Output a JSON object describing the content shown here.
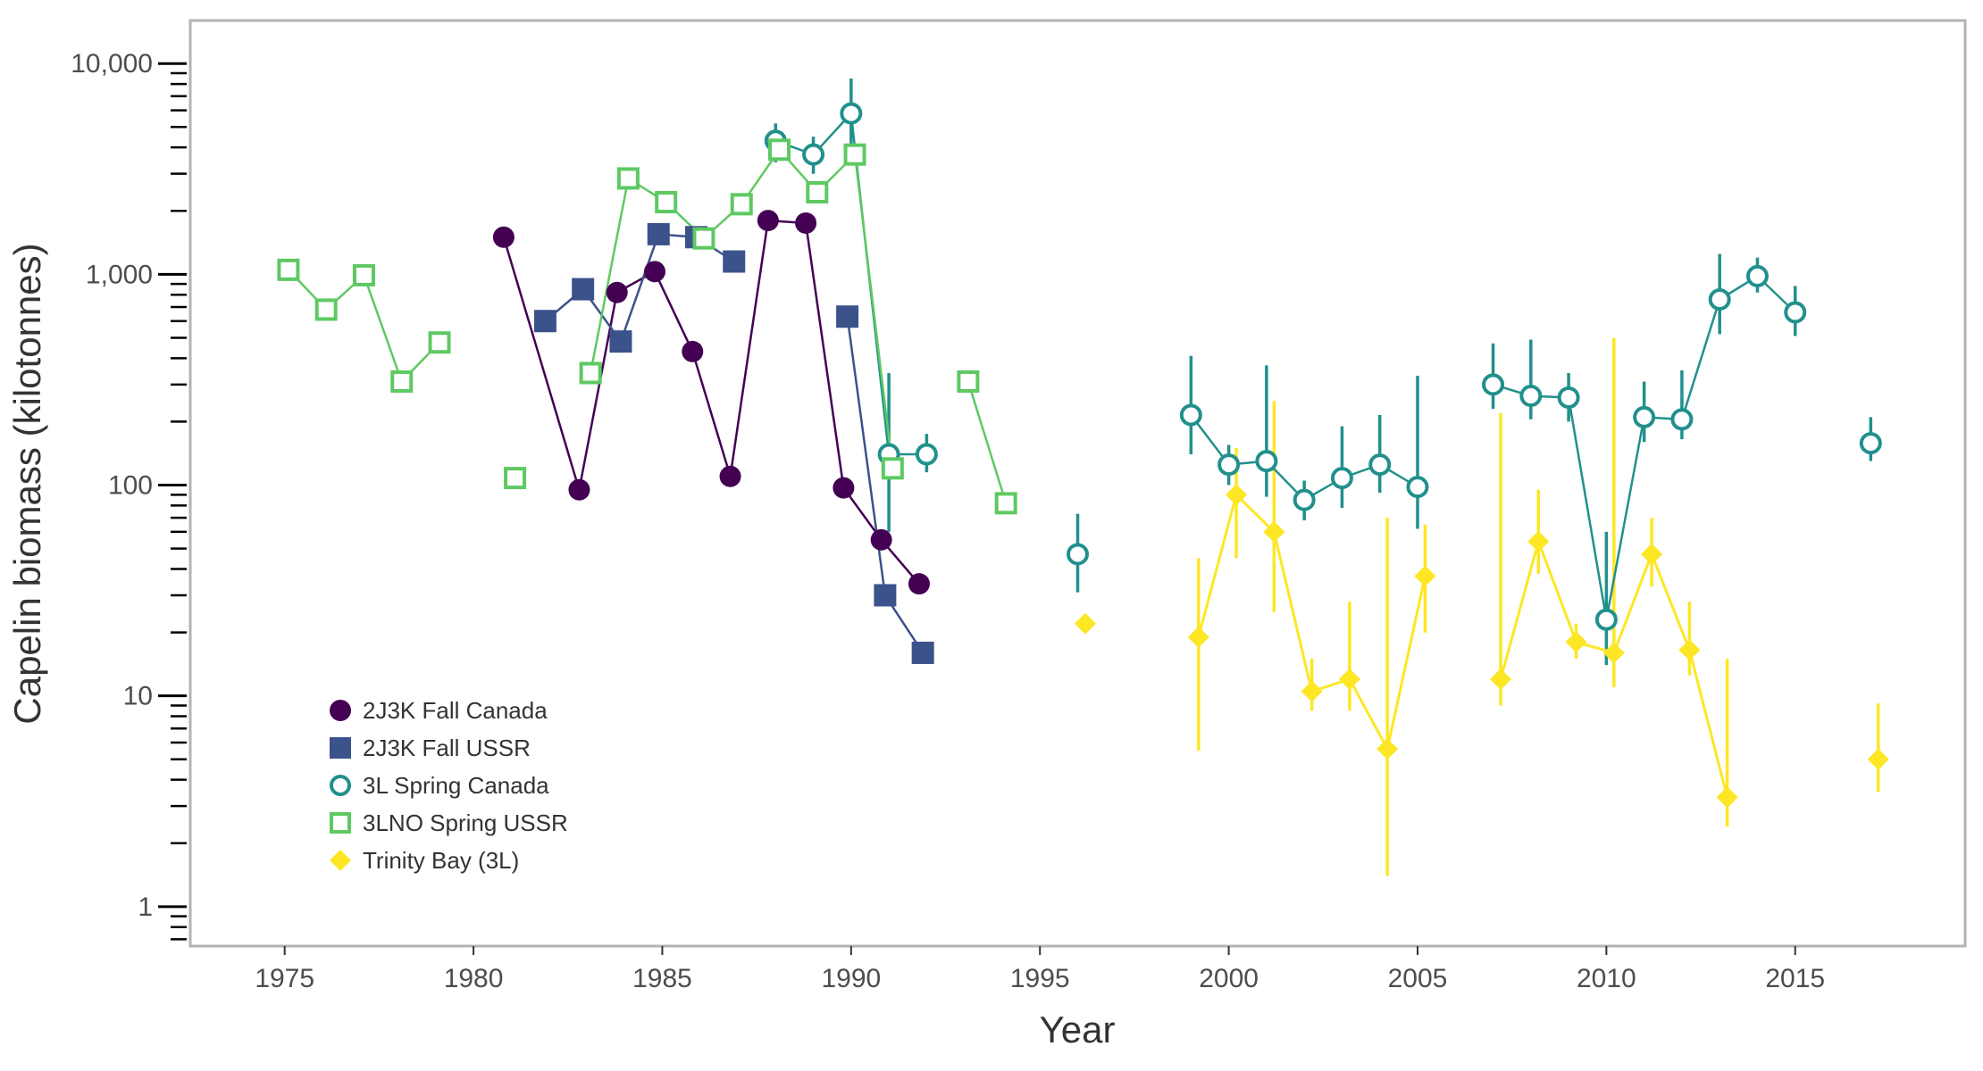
{
  "chart_data": {
    "type": "scatter",
    "xlabel": "Year",
    "ylabel": "Capelin biomass (kilotonnes)",
    "xlim": [
      1972.5,
      2019.5
    ],
    "ylim": [
      0.65,
      16000
    ],
    "yscale": "log",
    "x_ticks": [
      1975,
      1980,
      1985,
      1990,
      1995,
      2000,
      2005,
      2010,
      2015
    ],
    "x_tick_labels": [
      "1975",
      "1980",
      "1985",
      "1990",
      "1995",
      "2000",
      "2005",
      "2010",
      "2015"
    ],
    "y_ticks": [
      1,
      10,
      100,
      1000,
      10000
    ],
    "y_tick_labels": [
      "1",
      "10",
      "100",
      "1,000",
      "10,000"
    ],
    "grid": false,
    "legend_position": "bottom-left",
    "series": [
      {
        "name": "2J3K Fall Canada",
        "color": "#440154",
        "marker": "filled-circle",
        "segments": [
          [
            [
              1981,
              1500
            ],
            [
              1983,
              95
            ],
            [
              1984,
              820
            ],
            [
              1985,
              1030
            ],
            [
              1986,
              430
            ],
            [
              1987,
              110
            ],
            [
              1988,
              1800
            ],
            [
              1989,
              1750
            ],
            [
              1990,
              97
            ],
            [
              1991,
              55
            ],
            [
              1992,
              34
            ]
          ]
        ],
        "points": [
          {
            "x": 1981,
            "y": 1500
          },
          {
            "x": 1983,
            "y": 95
          },
          {
            "x": 1984,
            "y": 820
          },
          {
            "x": 1985,
            "y": 1030
          },
          {
            "x": 1986,
            "y": 430
          },
          {
            "x": 1987,
            "y": 110
          },
          {
            "x": 1988,
            "y": 1800
          },
          {
            "x": 1989,
            "y": 1750
          },
          {
            "x": 1990,
            "y": 97
          },
          {
            "x": 1991,
            "y": 55
          },
          {
            "x": 1992,
            "y": 34
          }
        ]
      },
      {
        "name": "2J3K Fall USSR",
        "color": "#3b528b",
        "marker": "filled-square",
        "segments": [
          [
            [
              1982,
              600
            ],
            [
              1983,
              850
            ],
            [
              1984,
              480
            ],
            [
              1985,
              1550
            ],
            [
              1986,
              1500
            ],
            [
              1987,
              1150
            ]
          ],
          [
            [
              1990,
              630
            ],
            [
              1991,
              30
            ],
            [
              1992,
              16
            ]
          ]
        ],
        "points": [
          {
            "x": 1982,
            "y": 600
          },
          {
            "x": 1983,
            "y": 850
          },
          {
            "x": 1984,
            "y": 480
          },
          {
            "x": 1985,
            "y": 1550
          },
          {
            "x": 1986,
            "y": 1500
          },
          {
            "x": 1987,
            "y": 1150
          },
          {
            "x": 1990,
            "y": 630
          },
          {
            "x": 1991,
            "y": 30
          },
          {
            "x": 1992,
            "y": 16
          }
        ]
      },
      {
        "name": "3L Spring Canada",
        "color": "#21908c",
        "marker": "open-circle",
        "segments": [
          [
            [
              1988,
              4300
            ],
            [
              1989,
              3700
            ],
            [
              1990,
              5800
            ],
            [
              1991,
              140
            ],
            [
              1992,
              140
            ]
          ],
          [
            [
              1999,
              215
            ],
            [
              2000,
              125
            ],
            [
              2001,
              130
            ],
            [
              2002,
              85
            ],
            [
              2003,
              108
            ],
            [
              2004,
              125
            ],
            [
              2005,
              98
            ]
          ],
          [
            [
              2007,
              300
            ],
            [
              2008,
              265
            ],
            [
              2009,
              260
            ],
            [
              2010,
              23
            ],
            [
              2011,
              210
            ],
            [
              2012,
              205
            ],
            [
              2013,
              760
            ],
            [
              2014,
              980
            ],
            [
              2015,
              660
            ]
          ]
        ],
        "points": [
          {
            "x": 1988,
            "y": 4300,
            "lo": 3400,
            "hi": 5200
          },
          {
            "x": 1989,
            "y": 3700,
            "lo": 3000,
            "hi": 4500
          },
          {
            "x": 1990,
            "y": 5800,
            "lo": 3800,
            "hi": 8500
          },
          {
            "x": 1991,
            "y": 140,
            "lo": 60,
            "hi": 340
          },
          {
            "x": 1992,
            "y": 140,
            "lo": 115,
            "hi": 175
          },
          {
            "x": 1996,
            "y": 47,
            "lo": 31,
            "hi": 73
          },
          {
            "x": 1999,
            "y": 215,
            "lo": 140,
            "hi": 410
          },
          {
            "x": 2000,
            "y": 125,
            "lo": 100,
            "hi": 155
          },
          {
            "x": 2001,
            "y": 130,
            "lo": 88,
            "hi": 370
          },
          {
            "x": 2002,
            "y": 85,
            "lo": 68,
            "hi": 105
          },
          {
            "x": 2003,
            "y": 108,
            "lo": 78,
            "hi": 190
          },
          {
            "x": 2004,
            "y": 125,
            "lo": 92,
            "hi": 215
          },
          {
            "x": 2005,
            "y": 98,
            "lo": 62,
            "hi": 330
          },
          {
            "x": 2007,
            "y": 300,
            "lo": 230,
            "hi": 470
          },
          {
            "x": 2008,
            "y": 265,
            "lo": 205,
            "hi": 490
          },
          {
            "x": 2009,
            "y": 260,
            "lo": 200,
            "hi": 340
          },
          {
            "x": 2010,
            "y": 23,
            "lo": 14,
            "hi": 60
          },
          {
            "x": 2011,
            "y": 210,
            "lo": 160,
            "hi": 310
          },
          {
            "x": 2012,
            "y": 205,
            "lo": 165,
            "hi": 350
          },
          {
            "x": 2013,
            "y": 760,
            "lo": 520,
            "hi": 1250
          },
          {
            "x": 2014,
            "y": 980,
            "lo": 820,
            "hi": 1200
          },
          {
            "x": 2015,
            "y": 660,
            "lo": 510,
            "hi": 880
          },
          {
            "x": 2017,
            "y": 158,
            "lo": 130,
            "hi": 210
          }
        ]
      },
      {
        "name": "3LNO Spring USSR",
        "color": "#5ec962",
        "marker": "open-square",
        "segments": [
          [
            [
              1975,
              1050
            ],
            [
              1976,
              680
            ],
            [
              1977,
              990
            ],
            [
              1978,
              310
            ],
            [
              1979,
              475
            ]
          ],
          [
            [
              1983,
              340
            ],
            [
              1984,
              2850
            ],
            [
              1985,
              2200
            ],
            [
              1986,
              1480
            ],
            [
              1987,
              2150
            ],
            [
              1988,
              3900
            ],
            [
              1989,
              2450
            ],
            [
              1990,
              3700
            ],
            [
              1991,
              120
            ]
          ],
          [
            [
              1993,
              310
            ],
            [
              1994,
              82
            ]
          ]
        ],
        "points": [
          {
            "x": 1975,
            "y": 1050
          },
          {
            "x": 1976,
            "y": 680
          },
          {
            "x": 1977,
            "y": 990
          },
          {
            "x": 1978,
            "y": 310
          },
          {
            "x": 1979,
            "y": 475
          },
          {
            "x": 1981,
            "y": 108
          },
          {
            "x": 1983,
            "y": 340
          },
          {
            "x": 1984,
            "y": 2850
          },
          {
            "x": 1985,
            "y": 2200
          },
          {
            "x": 1986,
            "y": 1480
          },
          {
            "x": 1987,
            "y": 2150
          },
          {
            "x": 1988,
            "y": 3900
          },
          {
            "x": 1989,
            "y": 2450
          },
          {
            "x": 1990,
            "y": 3700
          },
          {
            "x": 1991,
            "y": 120
          },
          {
            "x": 1993,
            "y": 310
          },
          {
            "x": 1994,
            "y": 82
          }
        ]
      },
      {
        "name": "Trinity Bay (3L)",
        "color": "#fde725",
        "marker": "filled-diamond",
        "segments": [
          [
            [
              1999,
              19
            ],
            [
              2000,
              90
            ],
            [
              2001,
              60
            ],
            [
              2002,
              10.5
            ],
            [
              2003,
              12
            ],
            [
              2004,
              5.6
            ],
            [
              2005,
              37
            ]
          ],
          [
            [
              2007,
              12
            ],
            [
              2008,
              54
            ],
            [
              2009,
              18
            ],
            [
              2010,
              16
            ],
            [
              2011,
              47
            ],
            [
              2012,
              16.5
            ],
            [
              2013,
              3.3
            ]
          ]
        ],
        "points": [
          {
            "x": 1996,
            "y": 22
          },
          {
            "x": 1999,
            "y": 19,
            "lo": 5.5,
            "hi": 45
          },
          {
            "x": 2000,
            "y": 90,
            "lo": 45,
            "hi": 150
          },
          {
            "x": 2001,
            "y": 60,
            "lo": 25,
            "hi": 250
          },
          {
            "x": 2002,
            "y": 10.5,
            "lo": 8.5,
            "hi": 15
          },
          {
            "x": 2003,
            "y": 12,
            "lo": 8.5,
            "hi": 28
          },
          {
            "x": 2004,
            "y": 5.6,
            "lo": 1.4,
            "hi": 70
          },
          {
            "x": 2005,
            "y": 37,
            "lo": 20,
            "hi": 65
          },
          {
            "x": 2007,
            "y": 12,
            "lo": 9,
            "hi": 220
          },
          {
            "x": 2008,
            "y": 54,
            "lo": 38,
            "hi": 95
          },
          {
            "x": 2009,
            "y": 18,
            "lo": 15,
            "hi": 22
          },
          {
            "x": 2010,
            "y": 16,
            "lo": 11,
            "hi": 500
          },
          {
            "x": 2011,
            "y": 47,
            "lo": 33,
            "hi": 70
          },
          {
            "x": 2012,
            "y": 16.5,
            "lo": 12.5,
            "hi": 28
          },
          {
            "x": 2013,
            "y": 3.3,
            "lo": 2.4,
            "hi": 15
          },
          {
            "x": 2017,
            "y": 5,
            "lo": 3.5,
            "hi": 9.2
          }
        ]
      }
    ]
  }
}
